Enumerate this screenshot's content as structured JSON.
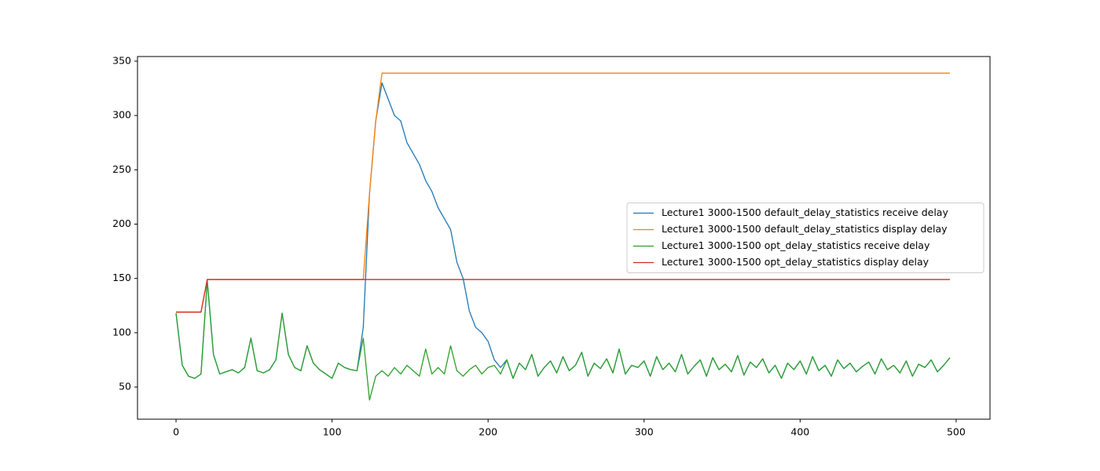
{
  "chart_data": {
    "type": "line",
    "x": [
      0,
      4,
      8,
      12,
      16,
      20,
      24,
      28,
      32,
      36,
      40,
      44,
      48,
      52,
      56,
      60,
      64,
      68,
      72,
      76,
      80,
      84,
      88,
      92,
      96,
      100,
      104,
      108,
      112,
      116,
      120,
      124,
      128,
      132,
      136,
      140,
      144,
      148,
      152,
      156,
      160,
      164,
      168,
      172,
      176,
      180,
      184,
      188,
      192,
      196,
      200,
      204,
      208,
      212,
      216,
      220,
      224,
      228,
      232,
      236,
      240,
      244,
      248,
      252,
      256,
      260,
      264,
      268,
      272,
      276,
      280,
      284,
      288,
      292,
      296,
      300,
      304,
      308,
      312,
      316,
      320,
      324,
      328,
      332,
      336,
      340,
      344,
      348,
      352,
      356,
      360,
      364,
      368,
      372,
      376,
      380,
      384,
      388,
      392,
      396,
      400,
      404,
      408,
      412,
      416,
      420,
      424,
      428,
      432,
      436,
      440,
      444,
      448,
      452,
      456,
      460,
      464,
      468,
      472,
      476,
      480,
      484,
      488,
      492,
      496
    ],
    "series": [
      {
        "name": "Lecture1 3000-1500 default_delay_statistics receive delay",
        "color": "#1f77b4",
        "values": [
          118,
          70,
          60,
          58,
          62,
          148,
          80,
          62,
          64,
          66,
          63,
          68,
          95,
          65,
          63,
          66,
          75,
          118,
          80,
          68,
          65,
          88,
          72,
          66,
          62,
          58,
          72,
          68,
          66,
          65,
          105,
          228,
          295,
          330,
          315,
          300,
          295,
          275,
          265,
          255,
          240,
          230,
          215,
          205,
          195,
          165,
          150,
          120,
          105,
          100,
          92,
          75,
          68,
          75,
          58,
          72,
          66,
          80,
          60,
          68,
          74,
          63,
          78,
          65,
          70,
          82,
          60,
          72,
          67,
          76,
          63,
          85,
          62,
          70,
          68,
          74,
          60,
          78,
          66,
          72,
          64,
          80,
          62,
          69,
          75,
          60,
          77,
          66,
          71,
          64,
          79,
          61,
          73,
          68,
          76,
          63,
          70,
          58,
          72,
          66,
          74,
          62,
          78,
          65,
          70,
          60,
          75,
          67,
          72,
          64,
          69,
          73,
          62,
          76,
          66,
          70,
          63,
          74,
          60,
          71,
          68,
          75,
          64,
          70,
          77
        ]
      },
      {
        "name": "Lecture1 3000-1500 default_delay_statistics display delay",
        "color": "#ff7f0e",
        "values": [
          119,
          119,
          119,
          119,
          119,
          149,
          149,
          149,
          149,
          149,
          149,
          149,
          149,
          149,
          149,
          149,
          149,
          149,
          149,
          149,
          149,
          149,
          149,
          149,
          149,
          149,
          149,
          149,
          149,
          149,
          149,
          228,
          295,
          339,
          339,
          339,
          339,
          339,
          339,
          339,
          339,
          339,
          339,
          339,
          339,
          339,
          339,
          339,
          339,
          339,
          339,
          339,
          339,
          339,
          339,
          339,
          339,
          339,
          339,
          339,
          339,
          339,
          339,
          339,
          339,
          339,
          339,
          339,
          339,
          339,
          339,
          339,
          339,
          339,
          339,
          339,
          339,
          339,
          339,
          339,
          339,
          339,
          339,
          339,
          339,
          339,
          339,
          339,
          339,
          339,
          339,
          339,
          339,
          339,
          339,
          339,
          339,
          339,
          339,
          339,
          339,
          339,
          339,
          339,
          339,
          339,
          339,
          339,
          339,
          339,
          339,
          339,
          339,
          339,
          339,
          339,
          339,
          339,
          339,
          339,
          339,
          339,
          339,
          339,
          339
        ]
      },
      {
        "name": "Lecture1 3000-1500 opt_delay_statistics receive delay",
        "color": "#2ca02c",
        "values": [
          118,
          70,
          60,
          58,
          62,
          148,
          80,
          62,
          64,
          66,
          63,
          68,
          95,
          65,
          63,
          66,
          75,
          118,
          80,
          68,
          65,
          88,
          72,
          66,
          62,
          58,
          72,
          68,
          66,
          65,
          95,
          38,
          60,
          65,
          60,
          68,
          62,
          70,
          65,
          60,
          85,
          62,
          68,
          62,
          88,
          65,
          60,
          66,
          70,
          62,
          68,
          70,
          62,
          75,
          58,
          72,
          66,
          80,
          60,
          68,
          74,
          63,
          78,
          65,
          70,
          82,
          60,
          72,
          67,
          76,
          63,
          85,
          62,
          70,
          68,
          74,
          60,
          78,
          66,
          72,
          64,
          80,
          62,
          69,
          75,
          60,
          77,
          66,
          71,
          64,
          79,
          61,
          73,
          68,
          76,
          63,
          70,
          58,
          72,
          66,
          74,
          62,
          78,
          65,
          70,
          60,
          75,
          67,
          72,
          64,
          69,
          73,
          62,
          76,
          66,
          70,
          63,
          74,
          60,
          71,
          68,
          75,
          64,
          70,
          77
        ]
      },
      {
        "name": "Lecture1 3000-1500 opt_delay_statistics display delay",
        "color": "#d62728",
        "values": [
          119,
          119,
          119,
          119,
          119,
          149,
          149,
          149,
          149,
          149,
          149,
          149,
          149,
          149,
          149,
          149,
          149,
          149,
          149,
          149,
          149,
          149,
          149,
          149,
          149,
          149,
          149,
          149,
          149,
          149,
          149,
          149,
          149,
          149,
          149,
          149,
          149,
          149,
          149,
          149,
          149,
          149,
          149,
          149,
          149,
          149,
          149,
          149,
          149,
          149,
          149,
          149,
          149,
          149,
          149,
          149,
          149,
          149,
          149,
          149,
          149,
          149,
          149,
          149,
          149,
          149,
          149,
          149,
          149,
          149,
          149,
          149,
          149,
          149,
          149,
          149,
          149,
          149,
          149,
          149,
          149,
          149,
          149,
          149,
          149,
          149,
          149,
          149,
          149,
          149,
          149,
          149,
          149,
          149,
          149,
          149,
          149,
          149,
          149,
          149,
          149,
          149,
          149,
          149,
          149,
          149,
          149,
          149,
          149,
          149,
          149,
          149,
          149,
          149,
          149,
          149,
          149,
          149,
          149,
          149,
          149,
          149,
          149,
          149,
          149
        ]
      }
    ],
    "xlim": [
      -24.7,
      521.7
    ],
    "ylim": [
      20.4,
      354.3
    ],
    "xticks": [
      0,
      100,
      200,
      300,
      400,
      500
    ],
    "yticks": [
      50,
      100,
      150,
      200,
      250,
      300,
      350
    ],
    "legend": "center right"
  }
}
